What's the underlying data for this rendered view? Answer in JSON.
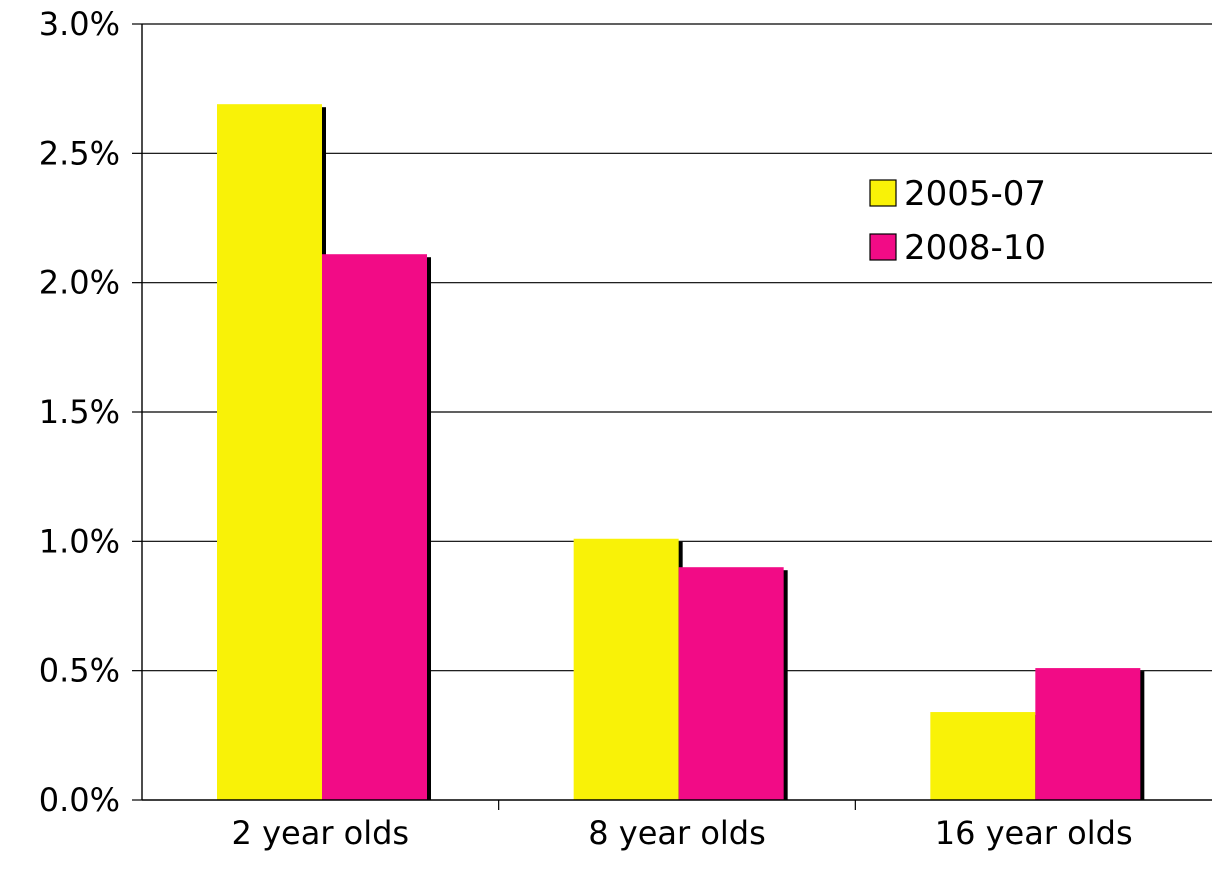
{
  "chart_data": {
    "type": "bar",
    "categories": [
      "2 year olds",
      "8 year olds",
      "16 year olds"
    ],
    "series": [
      {
        "name": "2005-07",
        "values": [
          2.69,
          1.01,
          0.34
        ],
        "color": "#f9f207"
      },
      {
        "name": "2008-10",
        "values": [
          2.11,
          0.9,
          0.51
        ],
        "color": "#f20b86"
      }
    ],
    "y_ticks": [
      "0.0%",
      "0.5%",
      "1.0%",
      "1.5%",
      "2.0%",
      "2.5%",
      "3.0%"
    ],
    "ylim": [
      0,
      3.0
    ],
    "grid": true,
    "legend_position": "top-right",
    "title": "",
    "xlabel": "",
    "ylabel": ""
  }
}
